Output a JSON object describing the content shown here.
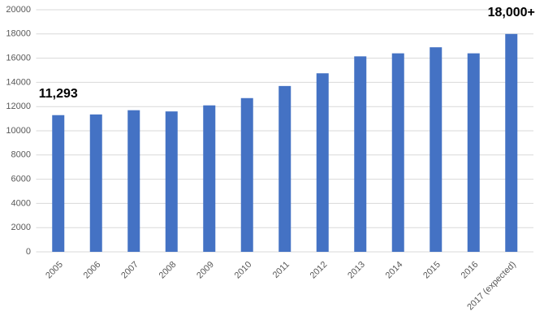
{
  "chart_data": {
    "type": "bar",
    "categories": [
      "2005",
      "2006",
      "2007",
      "2008",
      "2009",
      "2010",
      "2011",
      "2012",
      "2013",
      "2014",
      "2015",
      "2016",
      "2017 (expected)"
    ],
    "values": [
      11293,
      11350,
      11700,
      11600,
      12100,
      12700,
      13700,
      14750,
      16150,
      16400,
      16900,
      16400,
      18000
    ],
    "value_labels": [
      "11,293",
      null,
      null,
      null,
      null,
      null,
      null,
      null,
      null,
      null,
      null,
      null,
      "18,000+"
    ],
    "color": "#4472c4",
    "ylim": [
      0,
      20000
    ],
    "yticks": [
      0,
      2000,
      4000,
      6000,
      8000,
      10000,
      12000,
      14000,
      16000,
      18000,
      20000
    ],
    "grid": true
  }
}
